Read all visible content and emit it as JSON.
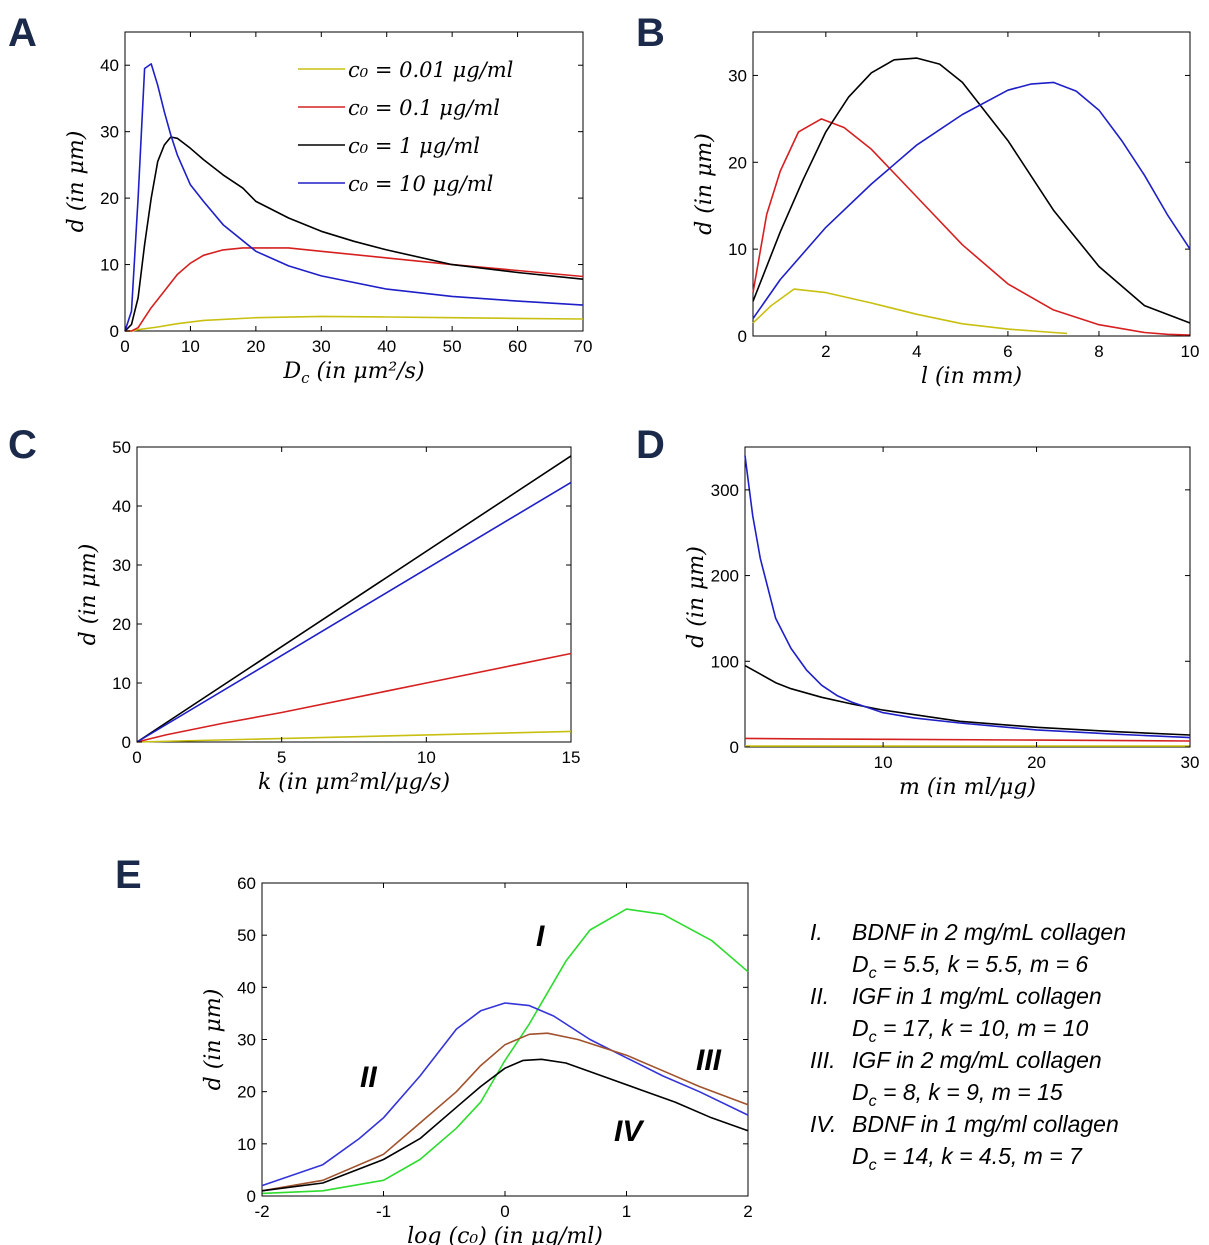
{
  "chart_data": [
    {
      "panel": "A",
      "type": "line",
      "xlabel": "D_c (in μm²/s)",
      "ylabel": "d (in μm)",
      "xlim": [
        0,
        70
      ],
      "ylim": [
        0,
        45
      ],
      "xticks": [
        "0",
        "10",
        "20",
        "30",
        "40",
        "50",
        "60",
        "70"
      ],
      "yticks": [
        "0",
        "10",
        "20",
        "30",
        "40"
      ],
      "legend": {
        "placement": "top-right"
      },
      "series": [
        {
          "name": "c₀ = 0.01 μg/ml",
          "color": "#c8c010",
          "x": [
            0,
            1,
            2,
            5,
            8,
            12,
            20,
            30,
            40,
            50,
            60,
            70
          ],
          "y": [
            0,
            0,
            0.2,
            0.6,
            1.1,
            1.6,
            2.0,
            2.2,
            2.1,
            2.0,
            1.9,
            1.8
          ]
        },
        {
          "name": "c₀ = 0.1 μg/ml",
          "color": "#d62020",
          "x": [
            0,
            1,
            2,
            3,
            4,
            6,
            8,
            10,
            12,
            15,
            18,
            22,
            25,
            30,
            40,
            50,
            60,
            70
          ],
          "y": [
            0,
            0,
            0.5,
            2,
            3.5,
            6,
            8.5,
            10.2,
            11.4,
            12.2,
            12.5,
            12.5,
            12.5,
            12,
            11,
            10,
            9.1,
            8.2
          ]
        },
        {
          "name": "c₀ = 1 μg/ml",
          "color": "#000000",
          "x": [
            0,
            1,
            2,
            3,
            4,
            5,
            6,
            7,
            8,
            10,
            12,
            15,
            18,
            20,
            25,
            30,
            35,
            40,
            50,
            60,
            70
          ],
          "y": [
            0,
            1,
            5,
            13,
            20,
            25.5,
            28,
            29.2,
            29,
            27.5,
            25.8,
            23.5,
            21.5,
            19.5,
            17,
            15,
            13.5,
            12.2,
            10,
            8.8,
            7.8
          ]
        },
        {
          "name": "c₀ = 10 μg/ml",
          "color": "#1f1fc8",
          "x": [
            0,
            1,
            2,
            3,
            4,
            5,
            6,
            7,
            8,
            10,
            12,
            15,
            20,
            25,
            30,
            40,
            50,
            60,
            70
          ],
          "y": [
            0,
            3,
            20,
            39.5,
            40.2,
            37,
            33,
            29.5,
            26.5,
            22,
            19.5,
            16,
            12,
            9.8,
            8.3,
            6.3,
            5.2,
            4.5,
            3.9
          ]
        }
      ]
    },
    {
      "panel": "B",
      "type": "line",
      "xlabel": "l (in mm)",
      "ylabel": "d (in μm)",
      "xlim": [
        0.4,
        10
      ],
      "ylim": [
        0,
        35
      ],
      "xticks": [
        "2",
        "4",
        "6",
        "8",
        "10"
      ],
      "yticks": [
        "0",
        "10",
        "20",
        "30"
      ],
      "series": [
        {
          "color": "#c8c010",
          "x": [
            0.4,
            0.8,
            1.3,
            2,
            3,
            4,
            5,
            6,
            7,
            7.3
          ],
          "y": [
            1.5,
            3.5,
            5.4,
            5.0,
            3.8,
            2.5,
            1.4,
            0.8,
            0.4,
            0.3
          ]
        },
        {
          "color": "#d62020",
          "x": [
            0.4,
            0.7,
            1,
            1.4,
            1.9,
            2.4,
            3,
            4,
            5,
            6,
            7,
            8,
            9,
            9.5,
            10
          ],
          "y": [
            5,
            14,
            19,
            23.5,
            25,
            24,
            21.5,
            16,
            10.5,
            6,
            3,
            1.3,
            0.4,
            0.2,
            0.1
          ]
        },
        {
          "color": "#000000",
          "x": [
            0.4,
            1,
            1.5,
            2,
            2.5,
            3,
            3.5,
            4,
            4.5,
            5,
            6,
            7,
            8,
            9,
            10
          ],
          "y": [
            4,
            12,
            18,
            23.5,
            27.5,
            30.3,
            31.8,
            32,
            31.3,
            29.2,
            22.5,
            14.5,
            8,
            3.5,
            1.5
          ]
        },
        {
          "color": "#1f1fc8",
          "x": [
            0.4,
            1,
            2,
            3,
            4,
            5,
            6,
            6.5,
            7,
            7.5,
            8,
            8.5,
            9,
            9.5,
            10
          ],
          "y": [
            2,
            6.5,
            12.5,
            17.5,
            22,
            25.5,
            28.3,
            29,
            29.2,
            28.2,
            26,
            22.5,
            18.5,
            14,
            10
          ]
        }
      ]
    },
    {
      "panel": "C",
      "type": "line",
      "xlabel": "k (in μm²ml/μg/s)",
      "ylabel": "d (in μm)",
      "xlim": [
        0,
        15
      ],
      "ylim": [
        0,
        50
      ],
      "xticks": [
        "0",
        "5",
        "10",
        "15"
      ],
      "yticks": [
        "0",
        "10",
        "20",
        "30",
        "40",
        "50"
      ],
      "series": [
        {
          "color": "#c8c010",
          "x": [
            0,
            15
          ],
          "y": [
            0,
            1.8
          ]
        },
        {
          "color": "#d62020",
          "x": [
            0,
            1,
            3,
            5,
            8,
            10,
            13,
            15
          ],
          "y": [
            0,
            1.2,
            3.2,
            5,
            8,
            10,
            13,
            15
          ]
        },
        {
          "color": "#000000",
          "x": [
            0,
            15
          ],
          "y": [
            0,
            48.5
          ]
        },
        {
          "color": "#1f1fc8",
          "x": [
            0,
            15
          ],
          "y": [
            0,
            44
          ]
        }
      ]
    },
    {
      "panel": "D",
      "type": "line",
      "xlabel": "m (in ml/μg)",
      "ylabel": "d (in μm)",
      "xlim": [
        1,
        30
      ],
      "ylim": [
        0,
        350
      ],
      "xticks": [
        "10",
        "20",
        "30"
      ],
      "yticks": [
        "0",
        "100",
        "200",
        "300"
      ],
      "series": [
        {
          "color": "#c8c010",
          "x": [
            1,
            30
          ],
          "y": [
            1,
            1
          ]
        },
        {
          "color": "#d62020",
          "x": [
            1,
            5,
            10,
            20,
            30
          ],
          "y": [
            10,
            9.5,
            9,
            8,
            7
          ]
        },
        {
          "color": "#000000",
          "x": [
            1,
            2,
            3,
            4,
            6,
            8,
            10,
            15,
            20,
            25,
            30
          ],
          "y": [
            95,
            85,
            75,
            68,
            58,
            50,
            43,
            30,
            23,
            18,
            14
          ]
        },
        {
          "color": "#1f1fc8",
          "x": [
            1,
            1.5,
            2,
            3,
            4,
            5,
            6,
            7,
            8,
            10,
            12,
            15,
            20,
            25,
            30
          ],
          "y": [
            340,
            270,
            220,
            150,
            115,
            90,
            72,
            60,
            52,
            40,
            34,
            28,
            20,
            15,
            11
          ]
        }
      ]
    },
    {
      "panel": "E",
      "type": "line",
      "xlabel": "log (c₀) (in μg/ml)",
      "ylabel": "d (in μm)",
      "xlim": [
        -2,
        2
      ],
      "ylim": [
        0,
        60
      ],
      "xticks": [
        "-2",
        "-1",
        "0",
        "1",
        "2"
      ],
      "yticks": [
        "0",
        "10",
        "20",
        "30",
        "40",
        "50",
        "60"
      ],
      "series": [
        {
          "name": "I",
          "color": "#2edc2e",
          "x": [
            -2,
            -1.5,
            -1,
            -0.7,
            -0.4,
            -0.2,
            0,
            0.2,
            0.5,
            0.7,
            1,
            1.3,
            1.7,
            2
          ],
          "y": [
            0.5,
            1,
            3,
            7,
            13,
            18,
            26,
            33,
            45,
            51,
            55,
            54,
            49,
            43
          ]
        },
        {
          "name": "II",
          "color": "#3434d8",
          "x": [
            -2,
            -1.5,
            -1.2,
            -1,
            -0.7,
            -0.4,
            -0.2,
            0,
            0.2,
            0.4,
            0.7,
            1,
            1.3,
            1.6,
            2
          ],
          "y": [
            2,
            6,
            11,
            15,
            23,
            32,
            35.5,
            37,
            36.5,
            34.5,
            30,
            26.5,
            23,
            20,
            15.5
          ]
        },
        {
          "name": "III",
          "color": "#a0522d",
          "x": [
            -2,
            -1.5,
            -1,
            -0.7,
            -0.4,
            -0.2,
            0,
            0.2,
            0.35,
            0.6,
            1,
            1.3,
            1.6,
            2
          ],
          "y": [
            1,
            3,
            8,
            14,
            20,
            25,
            29,
            31,
            31.2,
            30,
            27,
            24,
            21,
            17.5
          ]
        },
        {
          "name": "IV",
          "color": "#000000",
          "x": [
            -2,
            -1.5,
            -1,
            -0.7,
            -0.4,
            -0.2,
            0,
            0.15,
            0.3,
            0.5,
            0.8,
            1.1,
            1.4,
            1.7,
            2
          ],
          "y": [
            1,
            2.5,
            7,
            11,
            17,
            21,
            24.5,
            26,
            26.2,
            25.5,
            23,
            20.5,
            18,
            15,
            12.5
          ]
        }
      ]
    }
  ],
  "panel_letters": {
    "A": "A",
    "B": "B",
    "C": "C",
    "D": "D",
    "E": "E"
  },
  "curve_labels": {
    "I": "I",
    "II": "II",
    "III": "III",
    "IV": "IV"
  },
  "notes": [
    {
      "num": "I.",
      "line1": "BDNF in 2 mg/mL collagen",
      "line2": "D_c = 5.5, k = 5.5, m = 6"
    },
    {
      "num": "II.",
      "line1": "IGF in 1 mg/mL collagen",
      "line2": "D_c = 17, k = 10, m = 10"
    },
    {
      "num": "III.",
      "line1": "IGF in 2 mg/mL collagen",
      "line2": "D_c = 8, k = 9, m = 15"
    },
    {
      "num": "IV.",
      "line1": "BDNF in 1 mg/ml collagen",
      "line2": "D_c = 14, k = 4.5, m = 7"
    }
  ]
}
